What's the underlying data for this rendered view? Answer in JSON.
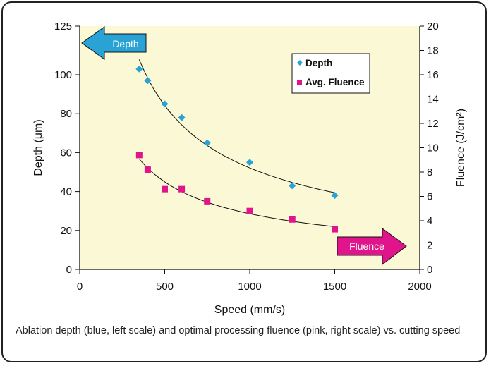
{
  "chart_data": {
    "type": "scatter",
    "x": [
      350,
      400,
      500,
      600,
      750,
      1000,
      1250,
      1500
    ],
    "xlabel": "Speed (mm/s)",
    "xlim": [
      0,
      2000
    ],
    "xticks": [
      "0",
      "500",
      "1000",
      "1500",
      "2000"
    ],
    "ylabel_left": "Depth (μm)",
    "ylim_left": [
      0,
      125
    ],
    "yticks_left": [
      "0",
      "20",
      "40",
      "60",
      "80",
      "100",
      "125"
    ],
    "ylabel_right": "Fluence (J/cm²)",
    "ylim_right": [
      0,
      20
    ],
    "yticks_right": [
      "0",
      "2",
      "4",
      "6",
      "8",
      "10",
      "12",
      "14",
      "16",
      "18",
      "20"
    ],
    "grid": false,
    "legend": "top-right",
    "series": [
      {
        "name": "Depth",
        "axis": "left",
        "marker": "diamond",
        "color": "#29a3d6",
        "values": [
          103,
          97,
          85,
          78,
          65,
          55,
          43,
          38
        ],
        "trendline": true
      },
      {
        "name": "Avg. Fluence",
        "axis": "right",
        "marker": "square",
        "color": "#e0158c",
        "values": [
          9.4,
          8.2,
          6.6,
          6.6,
          5.6,
          4.8,
          4.1,
          3.3
        ],
        "trendline": true
      }
    ],
    "annotations": {
      "left_arrow_label": "Depth",
      "right_arrow_label": "Fluence"
    }
  },
  "caption": "Ablation depth (blue, left scale) and optimal processing fluence (pink, right scale) vs. cutting speed",
  "colors": {
    "plot_background": "#fbf8d6",
    "depth_arrow": "#29a3d6",
    "fluence_arrow": "#e0158c"
  }
}
